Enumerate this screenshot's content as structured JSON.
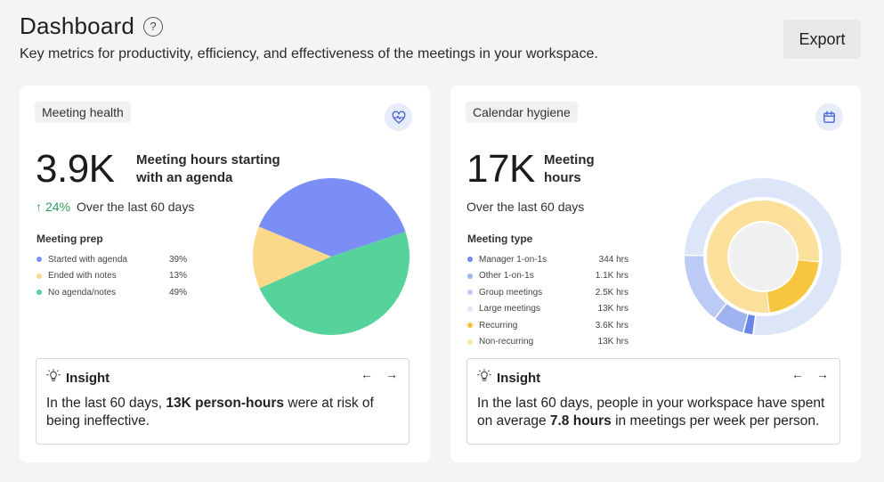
{
  "header": {
    "title": "Dashboard",
    "help_symbol": "?",
    "subtitle": "Key metrics for productivity, efficiency, and effectiveness of the meetings in your workspace.",
    "export_label": "Export"
  },
  "meeting_health": {
    "tag": "Meeting health",
    "icon": "heart-pulse-icon",
    "value": "3.9K",
    "label_line1": "Meeting hours starting",
    "label_line2": "with an agenda",
    "trend_arrow": "↑",
    "trend_value": "24%",
    "trend_text": "Over the last 60 days",
    "section_title": "Meeting prep",
    "legend": [
      {
        "label": "Started with agenda",
        "value": "39%",
        "color": "#7a8ef5"
      },
      {
        "label": "Ended with notes",
        "value": "13%",
        "color": "#fbd98a"
      },
      {
        "label": "No agenda/notes",
        "value": "49%",
        "color": "#56d39b"
      }
    ],
    "insight": {
      "title": "Insight",
      "prev": "←",
      "next": "→",
      "text_before": "In the last 60 days, ",
      "text_bold": "13K person-hours",
      "text_after": " were at risk of being ineffective."
    }
  },
  "calendar_hygiene": {
    "tag": "Calendar hygiene",
    "icon": "calendar-icon",
    "value": "17K",
    "label_line1": "Meeting",
    "label_line2": "hours",
    "trend_text": "Over the last 60 days",
    "section_title": "Meeting type",
    "legend": [
      {
        "label": "Manager 1-on-1s",
        "value": "344 hrs",
        "color": "#6a86e8"
      },
      {
        "label": "Other 1-on-1s",
        "value": "1.1K hrs",
        "color": "#9fb3f0"
      },
      {
        "label": "Group meetings",
        "value": "2.5K hrs",
        "color": "#bccbf5"
      },
      {
        "label": "Large meetings",
        "value": "13K hrs",
        "color": "#dde5f9"
      },
      {
        "label": "Recurring",
        "value": "3.6K hrs",
        "color": "#f7c63e"
      },
      {
        "label": "Non-recurring",
        "value": "13K hrs",
        "color": "#fbe09c"
      }
    ],
    "insight": {
      "title": "Insight",
      "prev": "←",
      "next": "→",
      "text_before": "In the last 60 days, people in your workspace have spent on average ",
      "text_bold": "7.8 hours",
      "text_after": " in meetings per week per person."
    }
  },
  "chart_data": [
    {
      "type": "pie",
      "categories": [
        "Started with agenda",
        "Ended with notes",
        "No agenda/notes"
      ],
      "values": [
        39,
        13,
        49
      ],
      "colors": [
        "#7a8ef5",
        "#fbd98a",
        "#56d39b"
      ]
    },
    {
      "type": "pie",
      "rings": [
        {
          "categories": [
            "Manager 1-on-1s",
            "Other 1-on-1s",
            "Group meetings",
            "Large meetings"
          ],
          "values": [
            344,
            1100,
            2500,
            13000
          ],
          "colors": [
            "#6a86e8",
            "#9fb3f0",
            "#bccbf5",
            "#dde5f9"
          ]
        },
        {
          "categories": [
            "Recurring",
            "Non-recurring"
          ],
          "values": [
            3600,
            13000
          ],
          "colors": [
            "#f7c63e",
            "#fbe09c"
          ]
        }
      ]
    }
  ]
}
